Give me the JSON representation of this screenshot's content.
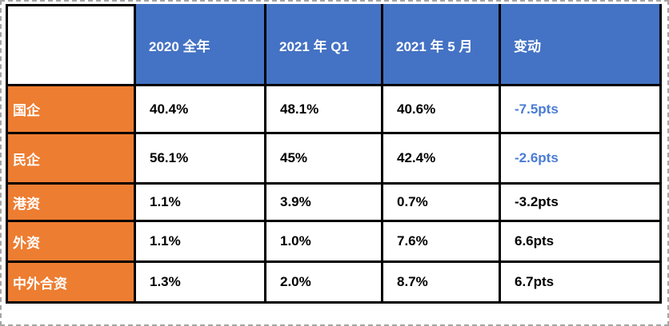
{
  "colors": {
    "header_bg": "#4472C4",
    "header_text": "#FFFFFF",
    "row_label_bg": "#ED7D31",
    "row_label_text": "#FFFFFF",
    "value_text": "#000000",
    "change_highlight_blue": "#4A7CD4",
    "table_border": "#000000",
    "selection_dash": "#A6A6A6"
  },
  "table": {
    "header": [
      "",
      "2020 全年",
      "2021 年 Q1",
      "2021 年 5 月",
      "变动"
    ],
    "rows": [
      {
        "label": "国企",
        "values": [
          "40.4%",
          "48.1%",
          "40.6%",
          "-7.5pts"
        ],
        "change_highlight": true
      },
      {
        "label": "民企",
        "values": [
          "56.1%",
          "45%",
          "42.4%",
          "-2.6pts"
        ],
        "change_highlight": true
      },
      {
        "label": "港资",
        "values": [
          "1.1%",
          "3.9%",
          "0.7%",
          "-3.2pts"
        ],
        "change_highlight": false
      },
      {
        "label": "外资",
        "values": [
          "1.1%",
          "1.0%",
          "7.6%",
          "6.6pts"
        ],
        "change_highlight": false
      },
      {
        "label": "中外合资",
        "values": [
          "1.3%",
          "2.0%",
          "8.7%",
          "6.7pts"
        ],
        "change_highlight": false
      }
    ]
  }
}
